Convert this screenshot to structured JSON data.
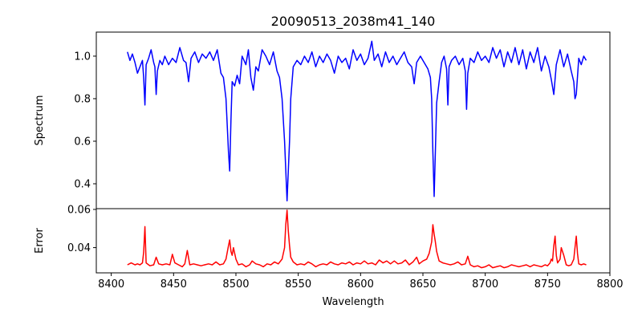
{
  "chart_data": [
    {
      "type": "line",
      "title": "20090513_2038m41_140",
      "xlabel": "",
      "ylabel": "Spectrum",
      "xlim": [
        8388,
        8800
      ],
      "ylim": [
        0.283,
        1.113
      ],
      "yticks": [
        0.4,
        0.6,
        0.8,
        1.0
      ],
      "ytick_labels": [
        "0.4",
        "0.6",
        "0.8",
        "1.0"
      ],
      "color": "#0000ff",
      "x": [
        8413,
        8415,
        8417,
        8419,
        8421,
        8423,
        8425,
        8426,
        8427,
        8428,
        8430,
        8432,
        8434,
        8435,
        8436,
        8437,
        8439,
        8441,
        8443,
        8446,
        8449,
        8452,
        8455,
        8458,
        8460,
        8462,
        8464,
        8467,
        8470,
        8473,
        8476,
        8479,
        8482,
        8485,
        8488,
        8490,
        8492,
        8494,
        8495,
        8496,
        8497,
        8499,
        8501,
        8503,
        8505,
        8508,
        8510,
        8512,
        8514,
        8516,
        8518,
        8521,
        8524,
        8527,
        8530,
        8533,
        8535,
        8537,
        8539,
        8541,
        8543,
        8544,
        8546,
        8549,
        8552,
        8555,
        8558,
        8561,
        8564,
        8567,
        8570,
        8573,
        8576,
        8579,
        8582,
        8585,
        8588,
        8591,
        8594,
        8597,
        8600,
        8603,
        8606,
        8609,
        8611,
        8614,
        8617,
        8620,
        8623,
        8626,
        8629,
        8632,
        8635,
        8638,
        8641,
        8643,
        8645,
        8648,
        8651,
        8654,
        8656,
        8657,
        8658,
        8659,
        8660,
        8661,
        8663,
        8665,
        8667,
        8669,
        8670,
        8671,
        8673,
        8676,
        8679,
        8682,
        8684,
        8685,
        8686,
        8688,
        8691,
        8694,
        8697,
        8700,
        8703,
        8706,
        8709,
        8712,
        8715,
        8718,
        8721,
        8724,
        8727,
        8730,
        8733,
        8736,
        8739,
        8742,
        8745,
        8748,
        8751,
        8753,
        8755,
        8757,
        8760,
        8763,
        8766,
        8769,
        8771,
        8772,
        8773,
        8775,
        8777,
        8779,
        8781
      ],
      "y": [
        1.02,
        0.98,
        1.01,
        0.97,
        0.92,
        0.95,
        0.98,
        0.9,
        0.77,
        0.96,
        0.99,
        1.03,
        0.97,
        0.95,
        0.82,
        0.93,
        0.98,
        0.96,
        1.0,
        0.96,
        0.99,
        0.97,
        1.04,
        0.98,
        0.97,
        0.88,
        0.99,
        1.02,
        0.97,
        1.01,
        0.99,
        1.02,
        0.98,
        1.03,
        0.92,
        0.9,
        0.8,
        0.55,
        0.46,
        0.7,
        0.88,
        0.86,
        0.91,
        0.87,
        1.0,
        0.96,
        1.03,
        0.9,
        0.84,
        0.95,
        0.93,
        1.03,
        1.0,
        0.96,
        1.02,
        0.93,
        0.9,
        0.8,
        0.6,
        0.32,
        0.6,
        0.8,
        0.95,
        0.98,
        0.96,
        1.0,
        0.97,
        1.02,
        0.95,
        1.0,
        0.97,
        1.01,
        0.98,
        0.92,
        1.0,
        0.97,
        0.99,
        0.94,
        1.03,
        0.98,
        1.01,
        0.96,
        0.99,
        1.07,
        0.98,
        1.01,
        0.95,
        1.02,
        0.97,
        1.0,
        0.96,
        0.99,
        1.02,
        0.97,
        0.95,
        0.87,
        0.97,
        1.0,
        0.97,
        0.94,
        0.9,
        0.8,
        0.55,
        0.34,
        0.55,
        0.78,
        0.88,
        0.97,
        1.0,
        0.94,
        0.77,
        0.95,
        0.98,
        1.0,
        0.96,
        0.99,
        0.93,
        0.75,
        0.92,
        0.99,
        0.97,
        1.02,
        0.98,
        1.0,
        0.97,
        1.04,
        0.99,
        1.03,
        0.95,
        1.02,
        0.97,
        1.04,
        0.96,
        1.03,
        0.94,
        1.02,
        0.97,
        1.04,
        0.93,
        1.0,
        0.95,
        0.89,
        0.82,
        0.96,
        1.03,
        0.95,
        1.01,
        0.93,
        0.88,
        0.8,
        0.82,
        0.99,
        0.96,
        1.0,
        0.98
      ]
    },
    {
      "type": "line",
      "xlabel": "Wavelength",
      "ylabel": "Error",
      "xlim": [
        8388,
        8800
      ],
      "ylim": [
        0.0268,
        0.0604
      ],
      "xticks": [
        8400,
        8450,
        8500,
        8550,
        8600,
        8650,
        8700,
        8750,
        8800
      ],
      "xtick_labels": [
        "8400",
        "8450",
        "8500",
        "8550",
        "8600",
        "8650",
        "8700",
        "8750",
        "8800"
      ],
      "yticks": [
        0.04,
        0.06
      ],
      "ytick_labels": [
        "0.04",
        "0.06"
      ],
      "color": "#ff0000",
      "x": [
        8413,
        8416,
        8419,
        8421,
        8423,
        8425,
        8426,
        8427,
        8428,
        8431,
        8434,
        8436,
        8438,
        8441,
        8444,
        8447,
        8449,
        8451,
        8454,
        8457,
        8459,
        8461,
        8463,
        8466,
        8469,
        8472,
        8475,
        8478,
        8481,
        8484,
        8487,
        8490,
        8492,
        8494,
        8495,
        8496,
        8497,
        8498,
        8500,
        8502,
        8505,
        8508,
        8511,
        8513,
        8516,
        8519,
        8522,
        8525,
        8528,
        8531,
        8534,
        8537,
        8539,
        8540,
        8541,
        8542,
        8543,
        8544,
        8546,
        8549,
        8552,
        8555,
        8558,
        8561,
        8564,
        8567,
        8570,
        8573,
        8576,
        8579,
        8582,
        8585,
        8588,
        8591,
        8594,
        8597,
        8600,
        8603,
        8606,
        8609,
        8612,
        8615,
        8618,
        8621,
        8624,
        8627,
        8630,
        8633,
        8636,
        8639,
        8642,
        8645,
        8647,
        8650,
        8653,
        8655,
        8657,
        8658,
        8659,
        8660,
        8661,
        8663,
        8666,
        8669,
        8672,
        8675,
        8678,
        8681,
        8684,
        8686,
        8688,
        8691,
        8694,
        8697,
        8700,
        8703,
        8706,
        8709,
        8712,
        8715,
        8718,
        8721,
        8724,
        8727,
        8730,
        8733,
        8736,
        8739,
        8742,
        8745,
        8748,
        8750,
        8752,
        8753,
        8754,
        8755,
        8756,
        8757,
        8758,
        8760,
        8761,
        8763,
        8765,
        8767,
        8769,
        8771,
        8772,
        8773,
        8774,
        8775,
        8777,
        8779,
        8781
      ],
      "y": [
        0.031,
        0.032,
        0.031,
        0.0315,
        0.031,
        0.032,
        0.0375,
        0.051,
        0.032,
        0.0305,
        0.031,
        0.035,
        0.0315,
        0.031,
        0.0315,
        0.031,
        0.0365,
        0.032,
        0.031,
        0.03,
        0.0315,
        0.0385,
        0.031,
        0.0315,
        0.031,
        0.0305,
        0.031,
        0.0315,
        0.031,
        0.0325,
        0.031,
        0.0315,
        0.034,
        0.041,
        0.044,
        0.038,
        0.036,
        0.04,
        0.034,
        0.031,
        0.0315,
        0.03,
        0.031,
        0.033,
        0.0315,
        0.031,
        0.03,
        0.0315,
        0.031,
        0.0325,
        0.0315,
        0.034,
        0.04,
        0.052,
        0.0596,
        0.049,
        0.041,
        0.035,
        0.0325,
        0.031,
        0.0315,
        0.031,
        0.0325,
        0.0315,
        0.03,
        0.031,
        0.0315,
        0.031,
        0.0325,
        0.0315,
        0.031,
        0.032,
        0.0315,
        0.0325,
        0.031,
        0.032,
        0.0315,
        0.033,
        0.0315,
        0.032,
        0.031,
        0.0335,
        0.032,
        0.033,
        0.0315,
        0.033,
        0.0315,
        0.032,
        0.0335,
        0.031,
        0.0325,
        0.035,
        0.0315,
        0.033,
        0.034,
        0.037,
        0.043,
        0.052,
        0.047,
        0.043,
        0.038,
        0.033,
        0.032,
        0.0315,
        0.031,
        0.0315,
        0.0325,
        0.031,
        0.0315,
        0.0355,
        0.031,
        0.03,
        0.0305,
        0.0295,
        0.03,
        0.031,
        0.0295,
        0.03,
        0.0305,
        0.0295,
        0.03,
        0.031,
        0.0305,
        0.03,
        0.0305,
        0.031,
        0.03,
        0.031,
        0.0305,
        0.03,
        0.031,
        0.0305,
        0.032,
        0.034,
        0.033,
        0.041,
        0.046,
        0.036,
        0.032,
        0.034,
        0.04,
        0.036,
        0.031,
        0.0305,
        0.031,
        0.034,
        0.04,
        0.046,
        0.037,
        0.0315,
        0.031,
        0.0315,
        0.031
      ]
    }
  ]
}
